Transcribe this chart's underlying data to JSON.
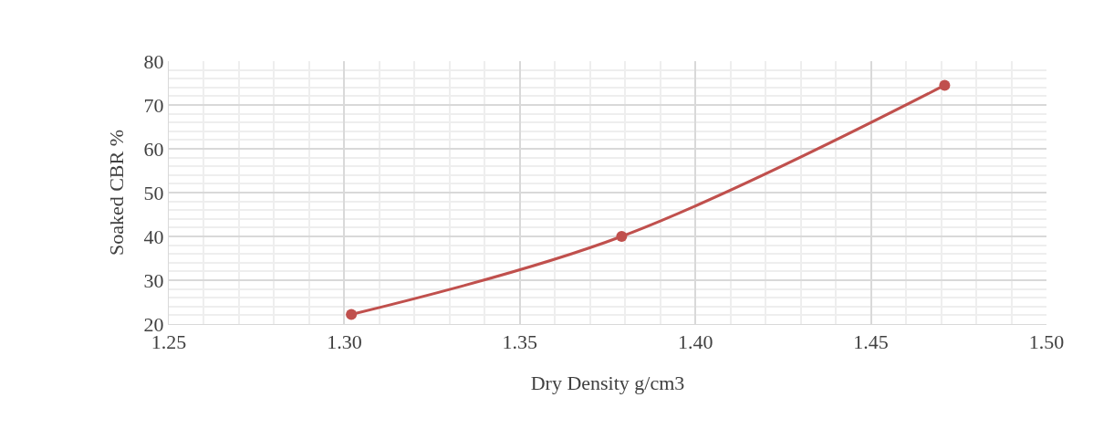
{
  "chart_data": {
    "type": "line",
    "xlabel": "Dry Density g/cm3",
    "ylabel": "Soaked CBR %",
    "x": [
      1.302,
      1.379,
      1.471
    ],
    "series": [
      {
        "color": "#c0504d",
        "values": [
          22.2,
          40,
          74.5
        ]
      }
    ],
    "xlim": [
      1.25,
      1.5
    ],
    "xticks": [
      {
        "value": 1.25,
        "label": "1.25"
      },
      {
        "value": 1.3,
        "label": "1.30"
      },
      {
        "value": 1.35,
        "label": "1.35"
      },
      {
        "value": 1.4,
        "label": "1.40"
      },
      {
        "value": 1.45,
        "label": "1.45"
      },
      {
        "value": 1.5,
        "label": "1.50"
      }
    ],
    "ylim": [
      20,
      80
    ],
    "yticks": [
      20,
      30,
      40,
      50,
      60,
      70,
      80
    ],
    "grid": true,
    "marker": "circle",
    "line_style": "solid"
  }
}
